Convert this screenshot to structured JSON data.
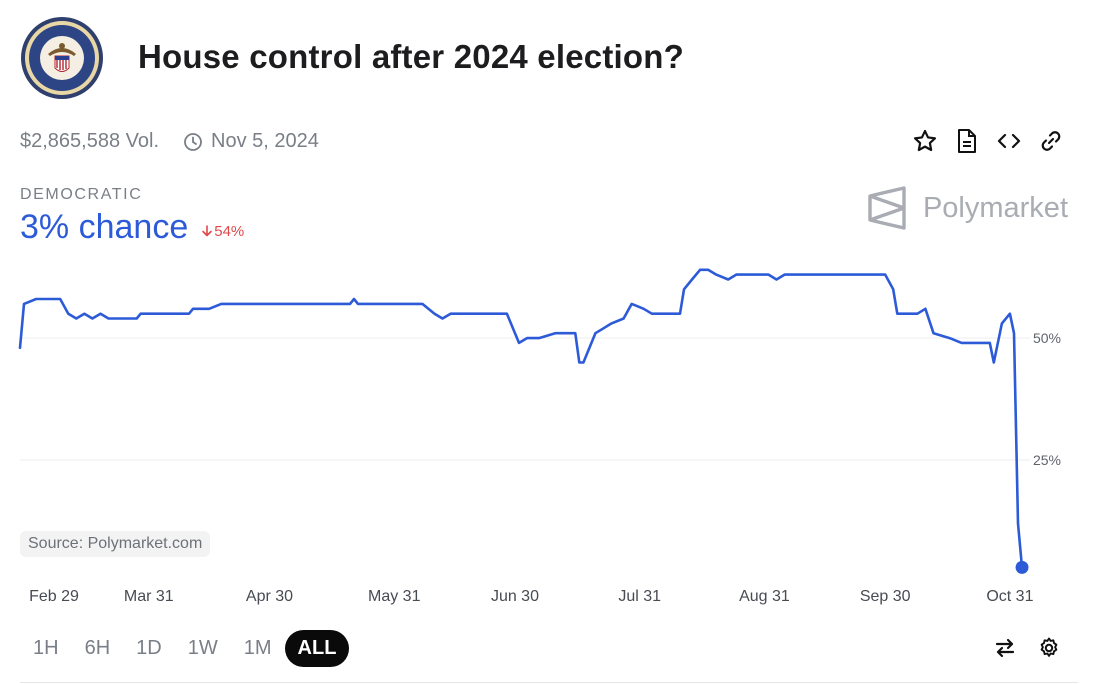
{
  "header": {
    "title": "House control after 2024 election?",
    "logo_icon": "house-of-representatives-seal-icon"
  },
  "meta": {
    "volume": "$2,865,588 Vol.",
    "end_date": "Nov 5, 2024",
    "clock_icon": "clock-icon"
  },
  "actions": [
    {
      "icon": "star-icon"
    },
    {
      "icon": "document-icon"
    },
    {
      "icon": "embed-code-icon"
    },
    {
      "icon": "link-icon"
    }
  ],
  "outcome": {
    "label": "DEMOCRATIC",
    "chance": "3% chance",
    "delta": "54%",
    "delta_direction": "down"
  },
  "brand": {
    "name": "Polymarket",
    "icon": "polymarket-logo-icon"
  },
  "source": "Source: Polymarket.com",
  "ranges": [
    "1H",
    "6H",
    "1D",
    "1W",
    "1M",
    "ALL"
  ],
  "active_range": "ALL",
  "tools": [
    {
      "icon": "swap-arrows-icon"
    },
    {
      "icon": "settings-gear-icon"
    }
  ],
  "colors": {
    "line": "#2d5bd8",
    "delta_down": "#e0494a",
    "grid": "#ececee"
  },
  "chart_data": {
    "type": "line",
    "title": "",
    "xlabel": "",
    "ylabel": "",
    "x_ticks": [
      "Feb 29",
      "Mar 31",
      "Apr 30",
      "May 31",
      "Jun 30",
      "Jul 31",
      "Aug 31",
      "Sep 30",
      "Oct 31"
    ],
    "y_ticks": [
      50,
      25
    ],
    "y_tick_labels": [
      "50%",
      "25%"
    ],
    "ylim": [
      0,
      66
    ],
    "grid": true,
    "series": [
      {
        "values": [
          [
            "Feb 28",
            48
          ],
          [
            "Feb 29",
            57
          ],
          [
            "Mar 3",
            58
          ],
          [
            "Mar 9",
            58
          ],
          [
            "Mar 11",
            55
          ],
          [
            "Mar 13",
            54
          ],
          [
            "Mar 15",
            55
          ],
          [
            "Mar 17",
            54
          ],
          [
            "Mar 19",
            55
          ],
          [
            "Mar 21",
            54
          ],
          [
            "Mar 24",
            54
          ],
          [
            "Mar 28",
            54
          ],
          [
            "Mar 29",
            55
          ],
          [
            "Apr 6",
            55
          ],
          [
            "Apr 10",
            55
          ],
          [
            "Apr 11",
            56
          ],
          [
            "Apr 15",
            56
          ],
          [
            "Apr 18",
            57
          ],
          [
            "May 4",
            57
          ],
          [
            "May 20",
            57
          ],
          [
            "May 21",
            58
          ],
          [
            "May 22",
            57
          ],
          [
            "Jun 7",
            57
          ],
          [
            "Jun 10",
            55
          ],
          [
            "Jun 12",
            54
          ],
          [
            "Jun 14",
            55
          ],
          [
            "Jun 28",
            55
          ],
          [
            "Jul 1",
            49
          ],
          [
            "Jul 3",
            50
          ],
          [
            "Jul 6",
            50
          ],
          [
            "Jul 10",
            51
          ],
          [
            "Jul 15",
            51
          ],
          [
            "Jul 16",
            45
          ],
          [
            "Jul 17",
            45
          ],
          [
            "Jul 18",
            47
          ],
          [
            "Jul 20",
            51
          ],
          [
            "Jul 22",
            52
          ],
          [
            "Jul 24",
            53
          ],
          [
            "Jul 27",
            54
          ],
          [
            "Jul 29",
            57
          ],
          [
            "Aug 1",
            56
          ],
          [
            "Aug 3",
            55
          ],
          [
            "Aug 10",
            55
          ],
          [
            "Aug 11",
            60
          ],
          [
            "Aug 13",
            62
          ],
          [
            "Aug 15",
            64
          ],
          [
            "Aug 17",
            64
          ],
          [
            "Aug 19",
            63
          ],
          [
            "Aug 22",
            62
          ],
          [
            "Aug 24",
            63
          ],
          [
            "Sep 1",
            63
          ],
          [
            "Sep 3",
            62
          ],
          [
            "Sep 5",
            63
          ],
          [
            "Sep 30",
            63
          ],
          [
            "Oct 2",
            60
          ],
          [
            "Oct 3",
            55
          ],
          [
            "Oct 8",
            55
          ],
          [
            "Oct 10",
            56
          ],
          [
            "Oct 12",
            51
          ],
          [
            "Oct 16",
            50
          ],
          [
            "Oct 19",
            49
          ],
          [
            "Oct 22",
            49
          ],
          [
            "Oct 26",
            49
          ],
          [
            "Oct 27",
            45
          ],
          [
            "Oct 29",
            53
          ],
          [
            "Oct 31",
            55
          ],
          [
            "Nov 1",
            51
          ],
          [
            "Nov 2",
            12
          ],
          [
            "Nov 3",
            3
          ]
        ]
      }
    ],
    "last_point": [
      "Nov 3",
      3
    ]
  }
}
